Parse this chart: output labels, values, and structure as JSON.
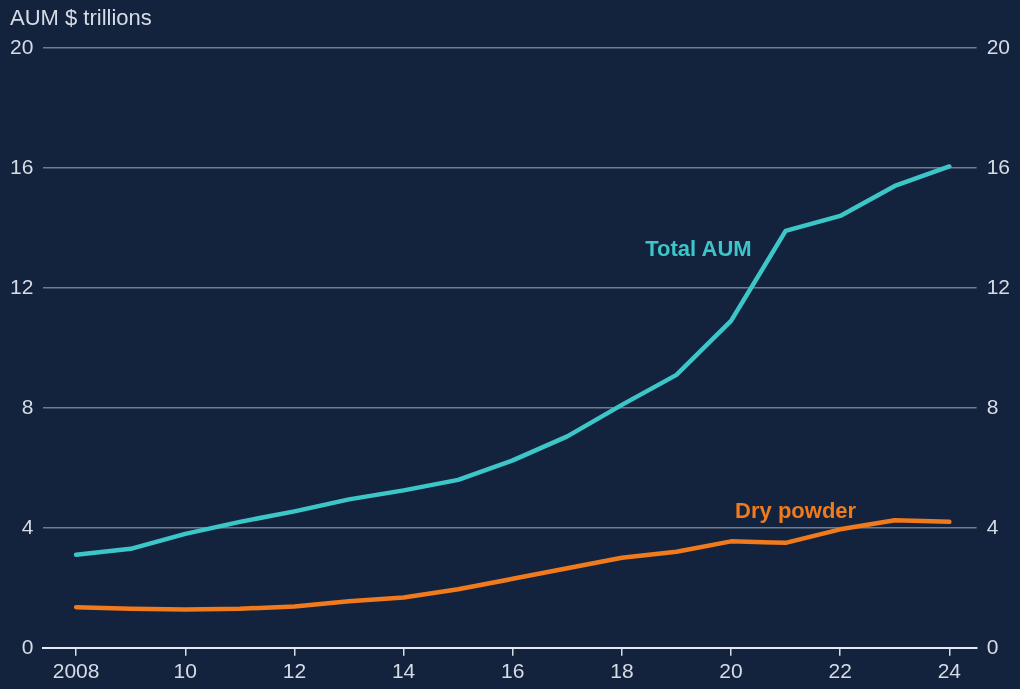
{
  "chart_data": {
    "type": "line",
    "ylabel": "AUM $ trillions",
    "x": [
      2008,
      2009,
      2010,
      2011,
      2012,
      2013,
      2014,
      2015,
      2016,
      2017,
      2018,
      2019,
      2020,
      2021,
      2022,
      2023,
      2024
    ],
    "series": [
      {
        "name": "Total AUM",
        "color": "#3cc6c8",
        "values": [
          3.1,
          3.3,
          3.8,
          4.2,
          4.55,
          4.95,
          5.25,
          5.6,
          6.25,
          7.05,
          8.1,
          9.1,
          10.9,
          13.9,
          14.4,
          15.4,
          16.05
        ]
      },
      {
        "name": "Dry powder",
        "color": "#f07a1c",
        "values": [
          1.35,
          1.3,
          1.28,
          1.3,
          1.38,
          1.55,
          1.68,
          1.95,
          2.3,
          2.65,
          3.0,
          3.2,
          3.55,
          3.5,
          3.95,
          4.25,
          4.2
        ]
      }
    ],
    "xlim": [
      2007.4,
      2024.5
    ],
    "xticks": [
      {
        "value": 2008,
        "label": "2008"
      },
      {
        "value": 2010,
        "label": "10"
      },
      {
        "value": 2012,
        "label": "12"
      },
      {
        "value": 2014,
        "label": "14"
      },
      {
        "value": 2016,
        "label": "16"
      },
      {
        "value": 2018,
        "label": "18"
      },
      {
        "value": 2020,
        "label": "20"
      },
      {
        "value": 2022,
        "label": "22"
      },
      {
        "value": 2024,
        "label": "24"
      }
    ],
    "ylim": [
      0,
      20
    ],
    "yticks": [
      0,
      4,
      8,
      12,
      16,
      20
    ],
    "y2lim": [
      0,
      20
    ],
    "y2ticks": [
      0,
      4,
      8,
      12,
      16,
      20
    ],
    "grid": "y",
    "legend": false,
    "marker": "none",
    "line_style": "solid"
  }
}
